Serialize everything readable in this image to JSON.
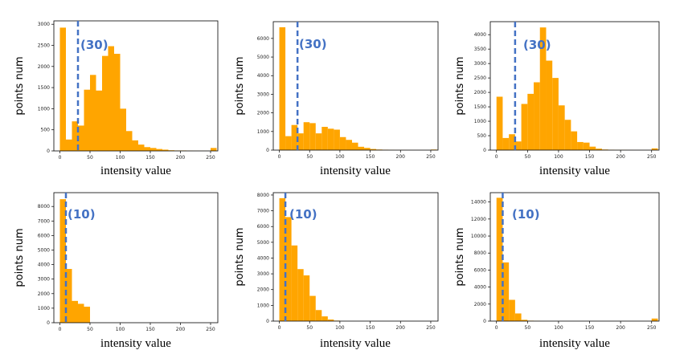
{
  "chart_data": [
    {
      "type": "bar",
      "bin_width": 10,
      "x": [
        0,
        10,
        20,
        30,
        40,
        50,
        60,
        70,
        80,
        90,
        100,
        110,
        120,
        130,
        140,
        150,
        160,
        170,
        180,
        190,
        200,
        210,
        220,
        230,
        240,
        250
      ],
      "values": [
        2920,
        270,
        700,
        600,
        1450,
        1800,
        1430,
        2250,
        2480,
        2300,
        1000,
        470,
        250,
        150,
        90,
        70,
        45,
        30,
        15,
        10,
        10,
        5,
        3,
        2,
        2,
        70
      ],
      "xlim": [
        -10,
        262
      ],
      "ylim": [
        0,
        3080
      ],
      "xticks": [
        0,
        50,
        100,
        150,
        200,
        250
      ],
      "yticks": [
        0,
        500,
        1000,
        1500,
        2000,
        2500,
        3000
      ],
      "xlabel": "intensity value",
      "ylabel": "points num",
      "threshold": 30,
      "threshold_label": "(30)",
      "color": "#ffa500",
      "line_color": "#4472c4"
    },
    {
      "type": "bar",
      "bin_width": 10,
      "x": [
        0,
        10,
        20,
        30,
        40,
        50,
        60,
        70,
        80,
        90,
        100,
        110,
        120,
        130,
        140,
        150,
        160,
        170,
        180,
        190,
        200,
        210,
        220,
        230,
        240,
        250
      ],
      "values": [
        6600,
        750,
        1350,
        900,
        1500,
        1450,
        900,
        1250,
        1150,
        1100,
        700,
        550,
        400,
        180,
        120,
        60,
        30,
        20,
        10,
        5,
        5,
        3,
        2,
        2,
        2,
        30
      ],
      "xlim": [
        -10,
        262
      ],
      "ylim": [
        0,
        6900
      ],
      "xticks": [
        0,
        50,
        100,
        150,
        200,
        250
      ],
      "yticks": [
        0,
        1000,
        2000,
        3000,
        4000,
        5000,
        6000
      ],
      "xlabel": "intensity value",
      "ylabel": "points num",
      "threshold": 30,
      "threshold_label": "(30)",
      "color": "#ffa500",
      "line_color": "#4472c4"
    },
    {
      "type": "bar",
      "bin_width": 10,
      "x": [
        0,
        10,
        20,
        30,
        40,
        50,
        60,
        70,
        80,
        90,
        100,
        110,
        120,
        130,
        140,
        150,
        160,
        170,
        180,
        190,
        200,
        210,
        220,
        230,
        240,
        250
      ],
      "values": [
        1850,
        420,
        550,
        300,
        1600,
        1950,
        2350,
        4250,
        3100,
        2500,
        1550,
        1050,
        650,
        280,
        260,
        120,
        50,
        20,
        10,
        5,
        5,
        3,
        2,
        2,
        2,
        60
      ],
      "xlim": [
        -10,
        262
      ],
      "ylim": [
        0,
        4450
      ],
      "xticks": [
        0,
        50,
        100,
        150,
        200,
        250
      ],
      "yticks": [
        0,
        500,
        1000,
        1500,
        2000,
        2500,
        3000,
        3500,
        4000
      ],
      "xlabel": "intensity value",
      "ylabel": "points num",
      "threshold": 30,
      "threshold_label": "(30)",
      "color": "#ffa500",
      "line_color": "#4472c4"
    },
    {
      "type": "bar",
      "bin_width": 10,
      "x": [
        0,
        10,
        20,
        30,
        40
      ],
      "values": [
        8500,
        3700,
        1500,
        1300,
        1100
      ],
      "xlim": [
        -10,
        262
      ],
      "ylim": [
        0,
        8950
      ],
      "xticks": [
        0,
        50,
        100,
        150,
        200,
        250
      ],
      "yticks": [
        0,
        1000,
        2000,
        3000,
        4000,
        5000,
        6000,
        7000,
        8000
      ],
      "xlabel": "intensity value",
      "ylabel": "points num",
      "threshold": 10,
      "threshold_label": "(10)",
      "color": "#ffa500",
      "line_color": "#4472c4"
    },
    {
      "type": "bar",
      "bin_width": 10,
      "x": [
        0,
        10,
        20,
        30,
        40,
        50,
        60,
        70,
        80,
        90
      ],
      "values": [
        7800,
        6600,
        4800,
        3300,
        2900,
        1600,
        700,
        300,
        100,
        30
      ],
      "xlim": [
        -10,
        262
      ],
      "ylim": [
        0,
        8150
      ],
      "xticks": [
        0,
        50,
        100,
        150,
        200,
        250
      ],
      "yticks": [
        0,
        1000,
        2000,
        3000,
        4000,
        5000,
        6000,
        7000,
        8000
      ],
      "xlabel": "intensity value",
      "ylabel": "points num",
      "threshold": 10,
      "threshold_label": "(10)",
      "color": "#ffa500",
      "line_color": "#4472c4"
    },
    {
      "type": "bar",
      "bin_width": 10,
      "x": [
        0,
        10,
        20,
        30,
        40,
        50,
        60,
        250
      ],
      "values": [
        14500,
        6900,
        2500,
        900,
        150,
        50,
        20,
        300
      ],
      "xlim": [
        -10,
        262
      ],
      "ylim": [
        0,
        15100
      ],
      "xticks": [
        0,
        50,
        100,
        150,
        200,
        250
      ],
      "yticks": [
        0,
        2000,
        4000,
        6000,
        8000,
        10000,
        12000,
        14000
      ],
      "xlabel": "intensity value",
      "ylabel": "points num",
      "threshold": 10,
      "threshold_label": "(10)",
      "color": "#ffa500",
      "line_color": "#4472c4"
    }
  ]
}
